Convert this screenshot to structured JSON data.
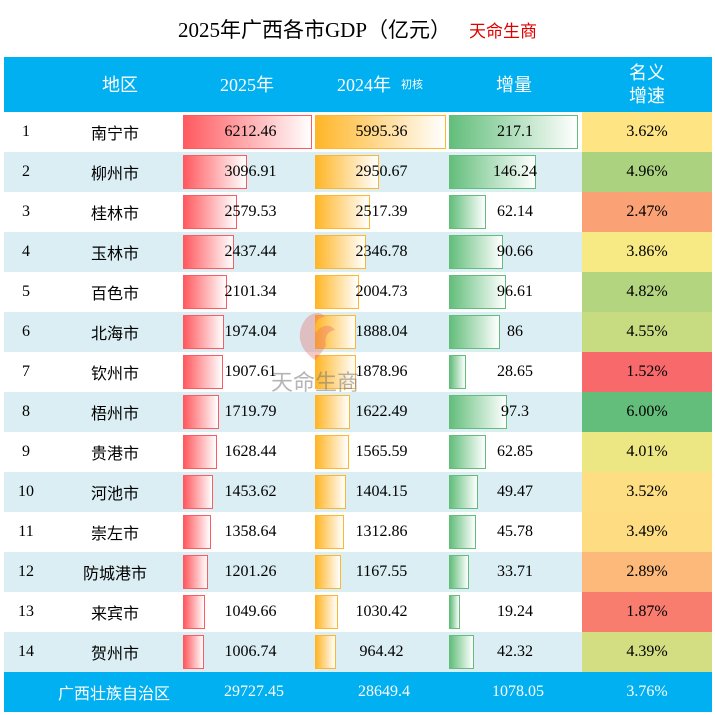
{
  "title": "2025年广西各市GDP（亿元）",
  "brand": "天命生商",
  "watermark": "天命生商",
  "colors": {
    "header_bg": "#00b0f0",
    "alt_row_bg": "#daeef3",
    "bar_2025": "#ff5a5f",
    "bar_2024": "#ffb628",
    "bar_increase": "#63be7b",
    "scale_low": "#f8696b",
    "scale_mid": "#ffeb84",
    "scale_high": "#63be7b"
  },
  "chart_data": {
    "type": "table",
    "title": "2025年广西各市GDP（亿元）",
    "columns": [
      "",
      "地区",
      "2025年",
      "2024年",
      "初核",
      "增量",
      "名义增速"
    ],
    "header": {
      "region": "地区",
      "y2025": "2025年",
      "y2024": "2024年",
      "y2024_note": "初核",
      "increase": "增量",
      "rate_line1": "名义",
      "rate_line2": "增速"
    },
    "rows": [
      {
        "rank": "1",
        "region": "南宁市",
        "y2025": 6212.46,
        "y2024": 5995.36,
        "increase": 217.1,
        "rate": "3.62%"
      },
      {
        "rank": "2",
        "region": "柳州市",
        "y2025": 3096.91,
        "y2024": 2950.67,
        "increase": 146.24,
        "rate": "4.96%"
      },
      {
        "rank": "3",
        "region": "桂林市",
        "y2025": 2579.53,
        "y2024": 2517.39,
        "increase": 62.14,
        "rate": "2.47%"
      },
      {
        "rank": "4",
        "region": "玉林市",
        "y2025": 2437.44,
        "y2024": 2346.78,
        "increase": 90.66,
        "rate": "3.86%"
      },
      {
        "rank": "5",
        "region": "百色市",
        "y2025": 2101.34,
        "y2024": 2004.73,
        "increase": 96.61,
        "rate": "4.82%"
      },
      {
        "rank": "6",
        "region": "北海市",
        "y2025": 1974.04,
        "y2024": 1888.04,
        "increase": 86,
        "rate": "4.55%"
      },
      {
        "rank": "7",
        "region": "钦州市",
        "y2025": 1907.61,
        "y2024": 1878.96,
        "increase": 28.65,
        "rate": "1.52%"
      },
      {
        "rank": "8",
        "region": "梧州市",
        "y2025": 1719.79,
        "y2024": 1622.49,
        "increase": 97.3,
        "rate": "6.00%"
      },
      {
        "rank": "9",
        "region": "贵港市",
        "y2025": 1628.44,
        "y2024": 1565.59,
        "increase": 62.85,
        "rate": "4.01%"
      },
      {
        "rank": "10",
        "region": "河池市",
        "y2025": 1453.62,
        "y2024": 1404.15,
        "increase": 49.47,
        "rate": "3.52%"
      },
      {
        "rank": "11",
        "region": "崇左市",
        "y2025": 1358.64,
        "y2024": 1312.86,
        "increase": 45.78,
        "rate": "3.49%"
      },
      {
        "rank": "12",
        "region": "防城港市",
        "y2025": 1201.26,
        "y2024": 1167.55,
        "increase": 33.71,
        "rate": "2.89%"
      },
      {
        "rank": "13",
        "region": "来宾市",
        "y2025": 1049.66,
        "y2024": 1030.42,
        "increase": 19.24,
        "rate": "1.87%"
      },
      {
        "rank": "14",
        "region": "贺州市",
        "y2025": 1006.74,
        "y2024": 964.42,
        "increase": 42.32,
        "rate": "4.39%"
      }
    ],
    "total": {
      "region": "广西壮族自治区",
      "y2025": "29727.45",
      "y2024": "28649.4",
      "increase": "1078.05",
      "rate": "3.76%"
    }
  }
}
